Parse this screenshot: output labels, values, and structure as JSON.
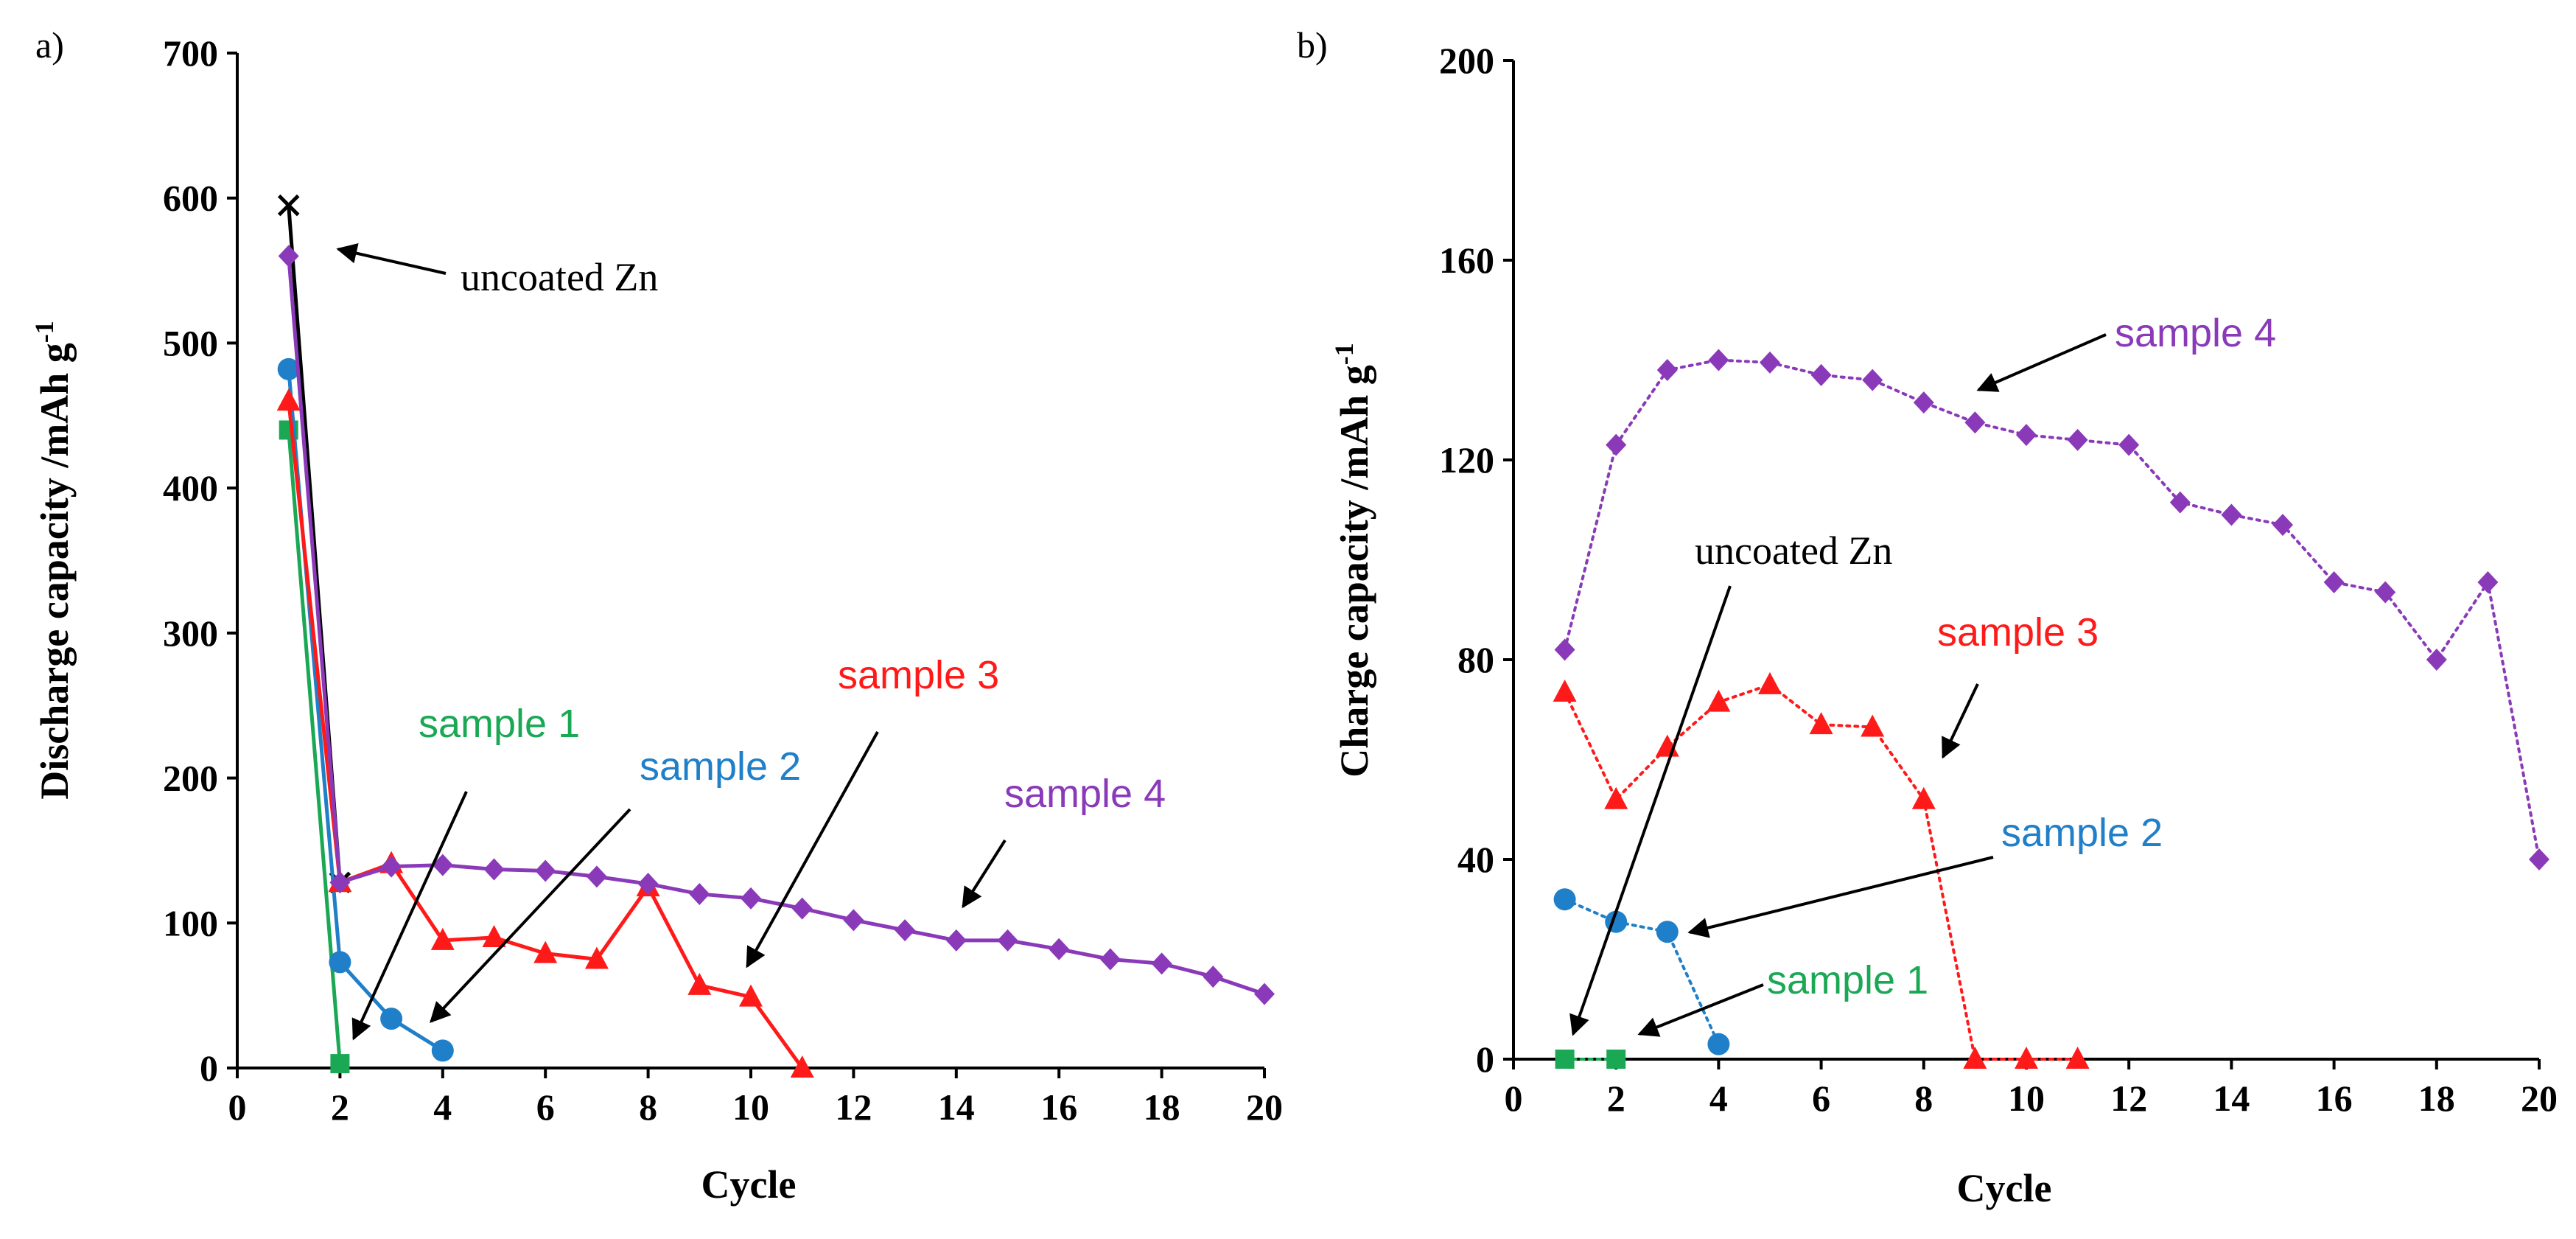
{
  "colors": {
    "uncoated": "#000000",
    "sample1": "#1aa855",
    "sample2": "#1f7fc8",
    "sample3": "#ff1a1a",
    "sample4": "#8a3ab9"
  },
  "chart_data": [
    {
      "panel": "a)",
      "type": "line",
      "xlabel": "Cycle",
      "ylabel": "Discharge capacity /mAh g",
      "ylabel_sup": "-1",
      "xlim": [
        0,
        20
      ],
      "ylim": [
        0,
        700
      ],
      "xticks": [
        "0",
        "2",
        "4",
        "6",
        "8",
        "10",
        "12",
        "14",
        "16",
        "18",
        "20"
      ],
      "yticks": [
        "0",
        "100",
        "200",
        "300",
        "400",
        "500",
        "600",
        "700"
      ],
      "grid": false,
      "line_style": "solid",
      "series": [
        {
          "key": "uncoated",
          "marker": "x",
          "x": [
            1,
            2
          ],
          "y": [
            595,
            128
          ]
        },
        {
          "key": "sample1",
          "marker": "square",
          "x": [
            1,
            2
          ],
          "y": [
            440,
            3
          ]
        },
        {
          "key": "sample2",
          "marker": "circle",
          "x": [
            1,
            2,
            3,
            4
          ],
          "y": [
            482,
            73,
            34,
            12
          ]
        },
        {
          "key": "sample3",
          "marker": "triangle",
          "x": [
            1,
            2,
            3,
            4,
            5,
            6,
            7,
            8,
            9,
            10,
            11
          ],
          "y": [
            460,
            128,
            141,
            88,
            90,
            79,
            75,
            125,
            57,
            49,
            0
          ]
        },
        {
          "key": "sample4",
          "marker": "diamond",
          "x": [
            1,
            2,
            3,
            4,
            5,
            6,
            7,
            8,
            9,
            10,
            11,
            12,
            13,
            14,
            15,
            16,
            17,
            18,
            19,
            20
          ],
          "y": [
            560,
            128,
            139,
            140,
            137,
            136,
            132,
            127,
            120,
            117,
            110,
            102,
            95,
            88,
            88,
            82,
            75,
            72,
            63,
            51
          ]
        }
      ],
      "annotations": [
        {
          "text": "uncoated Zn",
          "key": "uncoated",
          "font": "serif"
        },
        {
          "text": "sample 1",
          "key": "sample1",
          "font": "sans"
        },
        {
          "text": "sample 2",
          "key": "sample2",
          "font": "sans"
        },
        {
          "text": "sample 3",
          "key": "sample3",
          "font": "sans"
        },
        {
          "text": "sample 4",
          "key": "sample4",
          "font": "sans"
        }
      ]
    },
    {
      "panel": "b)",
      "type": "line",
      "xlabel": "Cycle",
      "ylabel": "Charge capacity /mAh g",
      "ylabel_sup": "-1",
      "xlim": [
        0,
        20
      ],
      "ylim": [
        0,
        200
      ],
      "xticks": [
        "0",
        "2",
        "4",
        "6",
        "8",
        "10",
        "12",
        "14",
        "16",
        "18",
        "20"
      ],
      "yticks": [
        "0",
        "40",
        "80",
        "120",
        "160",
        "200"
      ],
      "grid": false,
      "line_style": "dotted",
      "series": [
        {
          "key": "sample1",
          "marker": "square",
          "x": [
            1,
            2
          ],
          "y": [
            0,
            0
          ]
        },
        {
          "key": "sample2",
          "marker": "circle",
          "x": [
            1,
            2,
            3,
            4
          ],
          "y": [
            32,
            27.5,
            25.5,
            3
          ]
        },
        {
          "key": "sample3",
          "marker": "triangle",
          "x": [
            1,
            2,
            3,
            4,
            5,
            6,
            7,
            8,
            9,
            10,
            11
          ],
          "y": [
            73.5,
            52,
            62.5,
            71.5,
            75,
            67,
            66.5,
            52,
            0,
            0,
            0
          ]
        },
        {
          "key": "sample4",
          "marker": "diamond",
          "x": [
            1,
            2,
            3,
            4,
            5,
            6,
            7,
            8,
            9,
            10,
            11,
            12,
            13,
            14,
            15,
            16,
            17,
            18,
            19,
            20
          ],
          "y": [
            82,
            123,
            138,
            140,
            139.5,
            137,
            136,
            131.5,
            127.5,
            125,
            124,
            123,
            111.5,
            109,
            107,
            95.5,
            93.5,
            80,
            95.5,
            40
          ]
        }
      ],
      "annotations": [
        {
          "text": "uncoated Zn",
          "key": "uncoated",
          "font": "serif"
        },
        {
          "text": "sample 1",
          "key": "sample1",
          "font": "sans"
        },
        {
          "text": "sample 2",
          "key": "sample2",
          "font": "sans"
        },
        {
          "text": "sample 3",
          "key": "sample3",
          "font": "sans"
        },
        {
          "text": "sample 4",
          "key": "sample4",
          "font": "sans"
        }
      ]
    }
  ]
}
